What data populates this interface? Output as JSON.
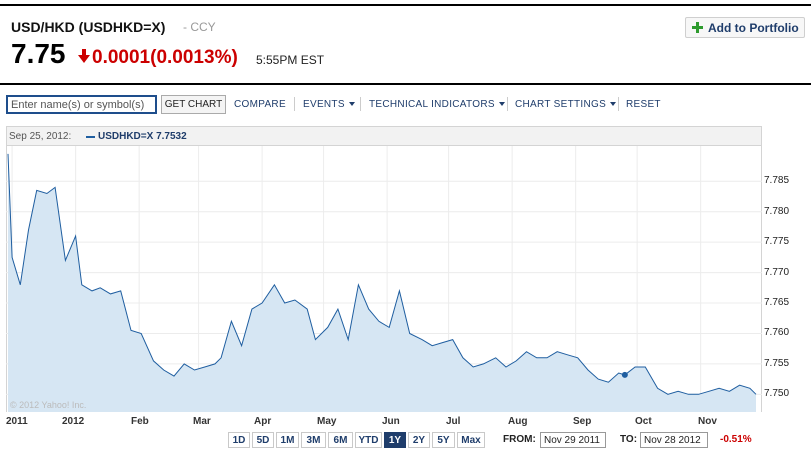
{
  "quote": {
    "title": "USD/HKD (USDHKD=X)",
    "sub": "- CCY",
    "price": "7.75",
    "change": "0.0001",
    "change_pct": "(0.0013%)",
    "time": "5:55PM EST",
    "direction": "down",
    "down_color": "#cc0000"
  },
  "add_portfolio": {
    "label": "Add to Portfolio",
    "icon": "plus-icon"
  },
  "toolbar": {
    "search_placeholder": "Enter name(s) or symbol(s)",
    "get_chart": "GET CHART",
    "compare": "COMPARE",
    "events": "EVENTS",
    "technical_indicators": "TECHNICAL INDICATORS",
    "chart_settings": "CHART SETTINGS",
    "reset": "RESET"
  },
  "chart_header": {
    "date": "Sep 25, 2012:",
    "legend_label": "USDHKD=X 7.7532"
  },
  "watermark": "© 2012 Yahoo! Inc.",
  "range": {
    "buttons": [
      "1D",
      "5D",
      "1M",
      "3M",
      "6M",
      "YTD",
      "1Y",
      "2Y",
      "5Y",
      "Max"
    ],
    "active": "1Y",
    "from_label": "FROM:",
    "from_value": "Nov 29 2011",
    "to_label": "TO:",
    "to_value": "Nov 28 2012",
    "pct_change": "-0.51%"
  },
  "chart_data": {
    "type": "area",
    "title": "",
    "xlabel": "",
    "ylabel": "",
    "ylim": [
      7.7471,
      7.7908
    ],
    "y_ticks": [
      "7.785",
      "7.780",
      "7.775",
      "7.770",
      "7.765",
      "7.760",
      "7.755",
      "7.750"
    ],
    "x_ticks": [
      "2011",
      "2012",
      "Feb",
      "Mar",
      "Apr",
      "May",
      "Jun",
      "Jul",
      "Aug",
      "Sep",
      "Oct",
      "Nov"
    ],
    "line_color": "#1f5ea0",
    "fill_color": "#d6e6f3",
    "grid": true,
    "highlight": {
      "date": "Sep 25, 2012",
      "value": 7.7532
    },
    "series": [
      {
        "name": "USDHKD=X",
        "x": [
          "2011-11-29",
          "2011-12-01",
          "2011-12-05",
          "2011-12-09",
          "2011-12-13",
          "2011-12-18",
          "2011-12-22",
          "2011-12-27",
          "2012-01-01",
          "2012-01-04",
          "2012-01-09",
          "2012-01-13",
          "2012-01-18",
          "2012-01-23",
          "2012-01-28",
          "2012-02-02",
          "2012-02-08",
          "2012-02-13",
          "2012-02-18",
          "2012-02-23",
          "2012-02-28",
          "2012-03-04",
          "2012-03-09",
          "2012-03-12",
          "2012-03-17",
          "2012-03-22",
          "2012-03-27",
          "2012-04-01",
          "2012-04-07",
          "2012-04-12",
          "2012-04-17",
          "2012-04-23",
          "2012-04-27",
          "2012-05-03",
          "2012-05-08",
          "2012-05-13",
          "2012-05-18",
          "2012-05-23",
          "2012-05-28",
          "2012-06-02",
          "2012-06-07",
          "2012-06-12",
          "2012-06-18",
          "2012-06-23",
          "2012-06-28",
          "2012-07-03",
          "2012-07-08",
          "2012-07-13",
          "2012-07-18",
          "2012-07-24",
          "2012-07-29",
          "2012-08-03",
          "2012-08-08",
          "2012-08-13",
          "2012-08-18",
          "2012-08-23",
          "2012-08-28",
          "2012-09-02",
          "2012-09-07",
          "2012-09-12",
          "2012-09-17",
          "2012-09-22",
          "2012-09-25",
          "2012-09-30",
          "2012-10-05",
          "2012-10-11",
          "2012-10-16",
          "2012-10-21",
          "2012-10-26",
          "2012-10-31",
          "2012-11-05",
          "2012-11-10",
          "2012-11-15",
          "2012-11-20",
          "2012-11-25",
          "2012-11-28"
        ],
        "values": [
          7.7895,
          7.7725,
          7.768,
          7.777,
          7.7835,
          7.783,
          7.784,
          7.772,
          7.776,
          7.768,
          7.767,
          7.7675,
          7.7665,
          7.767,
          7.7605,
          7.76,
          7.7555,
          7.754,
          7.753,
          7.755,
          7.754,
          7.7545,
          7.755,
          7.756,
          7.762,
          7.758,
          7.764,
          7.765,
          7.768,
          7.765,
          7.7655,
          7.764,
          7.759,
          7.761,
          7.764,
          7.759,
          7.768,
          7.764,
          7.762,
          7.761,
          7.767,
          7.76,
          7.759,
          7.758,
          7.7585,
          7.759,
          7.756,
          7.7545,
          7.755,
          7.756,
          7.7545,
          7.7555,
          7.757,
          7.756,
          7.756,
          7.757,
          7.7565,
          7.756,
          7.754,
          7.7525,
          7.752,
          7.7535,
          7.7532,
          7.7545,
          7.7545,
          7.751,
          7.75,
          7.7505,
          7.75,
          7.75,
          7.7505,
          7.751,
          7.7505,
          7.7515,
          7.751,
          7.75
        ]
      }
    ]
  }
}
